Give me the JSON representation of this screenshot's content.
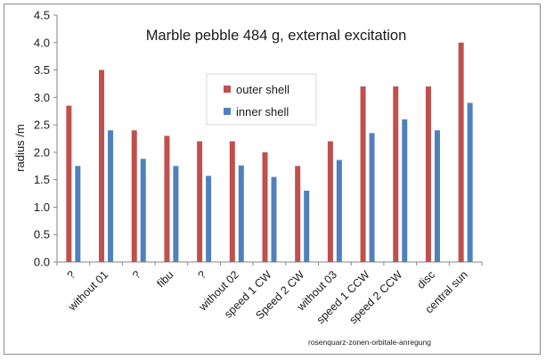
{
  "chart_data": {
    "type": "bar",
    "title": "Marble pebble 484 g, external excitation",
    "ylabel": "radius /m",
    "xlabel": "",
    "ylim": [
      0,
      4.5
    ],
    "yticks": [
      "0.0",
      "0.5",
      "1.0",
      "1.5",
      "2.0",
      "2.5",
      "3.0",
      "3.5",
      "4.0",
      "4.5"
    ],
    "categories": [
      "?",
      "without 01",
      "?",
      "fibu",
      "?",
      "without 02",
      "speed 1 CW",
      "Speed 2 CW",
      "without 03",
      "speed 1 CCW",
      "speed 2 CCW",
      "disc",
      "central sun"
    ],
    "series": [
      {
        "name": "outer shell",
        "color": "#c0504d",
        "values": [
          2.85,
          3.5,
          2.4,
          2.3,
          2.2,
          2.2,
          2.0,
          1.75,
          2.2,
          3.2,
          3.2,
          3.2,
          4.0
        ]
      },
      {
        "name": "inner shell",
        "color": "#4f81bd",
        "values": [
          1.75,
          2.4,
          1.88,
          1.75,
          1.57,
          1.76,
          1.55,
          1.3,
          1.86,
          2.35,
          2.6,
          2.4,
          2.9
        ]
      }
    ],
    "legend_position": "center-left",
    "grid": false,
    "caption": "rosenquarz-zonen-orbitale-anregung"
  }
}
